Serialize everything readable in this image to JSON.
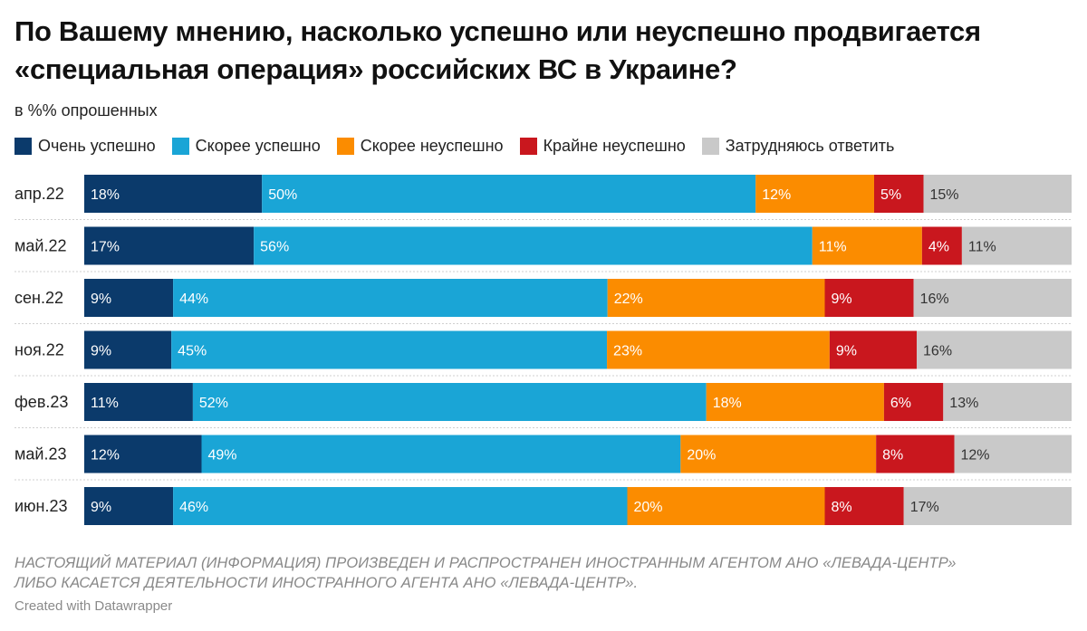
{
  "title_lines": [
    "По Вашему мнению, насколько успешно или неуспешно продвигается",
    "«специальная операция» российских ВС в Украине?"
  ],
  "subtitle": "в %% опрошенных",
  "footnote_lines": [
    "НАСТОЯЩИЙ МАТЕРИАЛ (ИНФОРМАЦИЯ) ПРОИЗВЕДЕН И РАСПРОСТРАНЕН ИНОСТРАННЫМ АГЕНТОМ АНО «ЛЕВАДА-ЦЕНТР»",
    "ЛИБО КАСАЕТСЯ ДЕЯТЕЛЬНОСТИ ИНОСТРАННОГО АГЕНТА АНО «ЛЕВАДА-ЦЕНТР»."
  ],
  "credit": "Created with Datawrapper",
  "chart_data": {
    "type": "bar",
    "orientation": "horizontal",
    "stacked": true,
    "unit": "%",
    "categories": [
      "апр.22",
      "май.22",
      "сен.22",
      "ноя.22",
      "фев.23",
      "май.23",
      "июн.23"
    ],
    "series": [
      {
        "name": "Очень успешно",
        "color": "#0b3a6b",
        "label_color": "#ffffff",
        "values": [
          18,
          17,
          9,
          9,
          11,
          12,
          9
        ]
      },
      {
        "name": "Скорее успешно",
        "color": "#1aa5d6",
        "label_color": "#ffffff",
        "values": [
          50,
          56,
          44,
          45,
          52,
          49,
          46
        ]
      },
      {
        "name": "Скорее неуспешно",
        "color": "#fb8c00",
        "label_color": "#ffffff",
        "values": [
          12,
          11,
          22,
          23,
          18,
          20,
          20
        ]
      },
      {
        "name": "Крайне неуспешно",
        "color": "#c9171e",
        "label_color": "#ffffff",
        "values": [
          5,
          4,
          9,
          9,
          6,
          8,
          8
        ]
      },
      {
        "name": "Затрудняюсь ответить",
        "color": "#c9c9c9",
        "label_color": "#333333",
        "values": [
          15,
          11,
          16,
          16,
          13,
          12,
          17
        ]
      }
    ]
  }
}
